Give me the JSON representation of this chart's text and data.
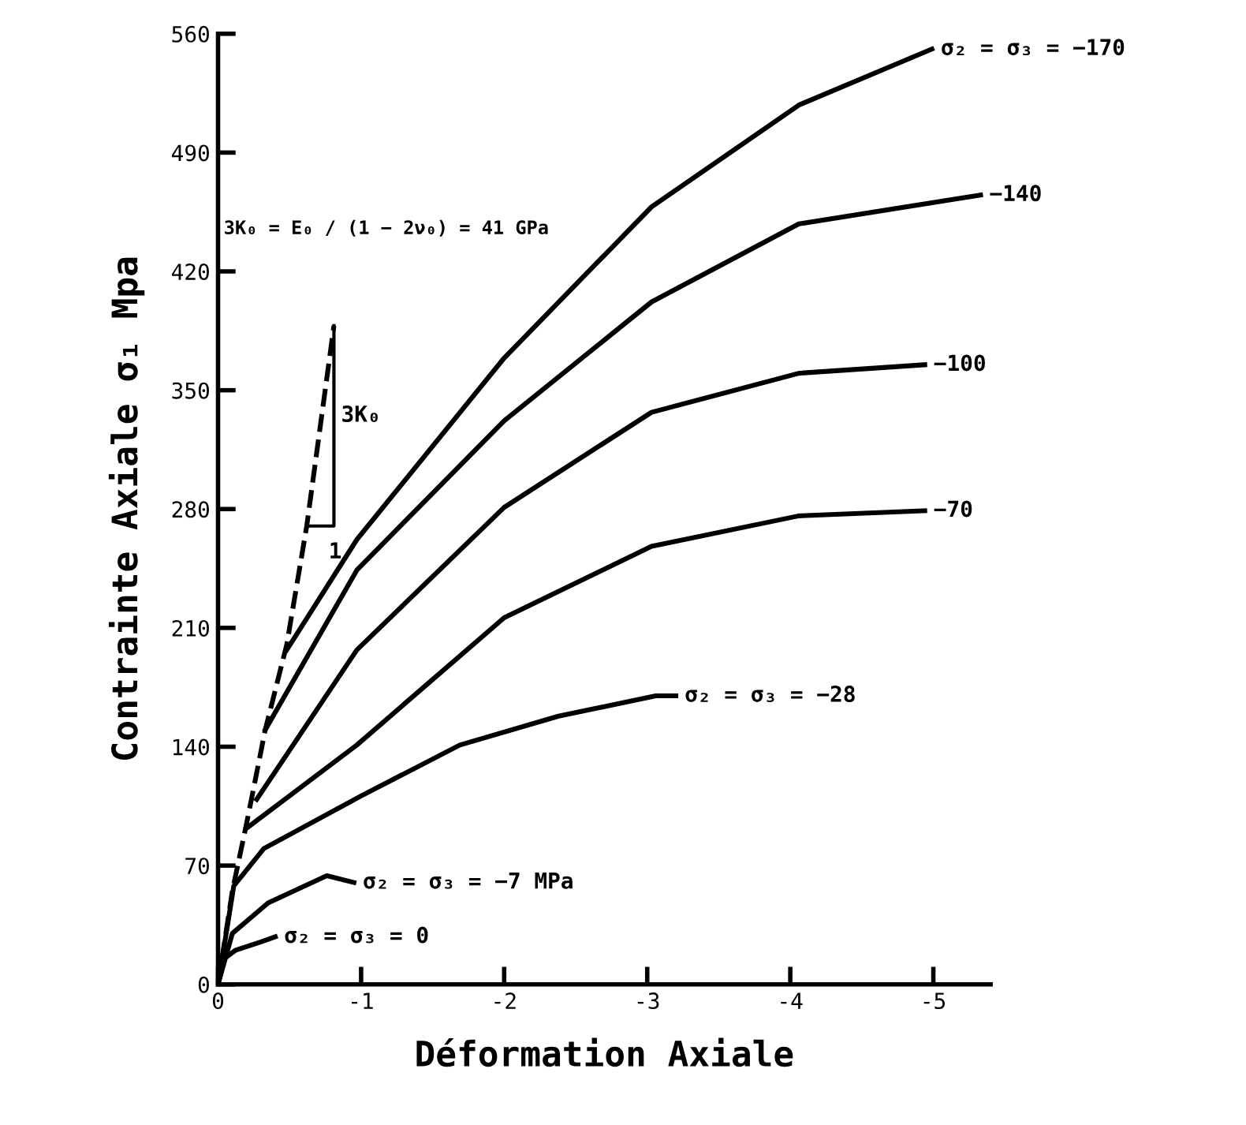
{
  "chart_data": {
    "type": "line",
    "xlabel": "Déformation Axiale",
    "ylabel": "Contrainte Axiale σ₁ Mpa",
    "xlim": [
      0,
      -5.4
    ],
    "xticks": [
      0,
      -1,
      -2,
      -3,
      -4,
      -5
    ],
    "ylim": [
      0,
      560
    ],
    "yticks": [
      0,
      70,
      140,
      210,
      280,
      350,
      420,
      490,
      560
    ],
    "grid": false,
    "legend": false,
    "marker": "none",
    "line_style": "solid",
    "series": [
      {
        "name": "σ₂ = σ₃ = 0",
        "color": "#000000",
        "x": [
          0,
          -0.04,
          -0.12,
          -0.3,
          -0.4
        ],
        "values": [
          0,
          15,
          20,
          25,
          28
        ]
      },
      {
        "name": "σ₂ = σ₃ = −7 MPa",
        "color": "#000000",
        "x": [
          0,
          -0.1,
          -0.35,
          -0.76,
          -0.95
        ],
        "values": [
          0,
          30,
          48,
          64,
          60
        ]
      },
      {
        "name": "σ₂ = σ₃ = −28",
        "color": "#000000",
        "x": [
          0,
          -0.11,
          -0.32,
          -1.0,
          -1.69,
          -2.38,
          -3.06,
          -3.2
        ],
        "values": [
          0,
          58,
          80,
          111,
          141,
          158,
          170,
          170
        ]
      },
      {
        "name": "−70",
        "color": "#000000",
        "x": [
          -0.2,
          -0.97,
          -2.0,
          -3.03,
          -4.06,
          -4.94
        ],
        "values": [
          92,
          141,
          216,
          258,
          276,
          279
        ]
      },
      {
        "name": "−100",
        "color": "#000000",
        "x": [
          -0.27,
          -0.97,
          -2.0,
          -3.03,
          -4.06,
          -4.94
        ],
        "values": [
          109,
          197,
          281,
          337,
          360,
          365
        ]
      },
      {
        "name": "−140",
        "color": "#000000",
        "x": [
          -0.33,
          -0.97,
          -2.0,
          -3.03,
          -4.06,
          -5.33
        ],
        "values": [
          150,
          244,
          332,
          402,
          448,
          465
        ]
      },
      {
        "name": "σ₂ = σ₃ = −170",
        "color": "#000000",
        "x": [
          -0.48,
          -0.97,
          -2.0,
          -3.03,
          -4.06,
          -4.99
        ],
        "values": [
          197,
          262,
          369,
          458,
          518,
          551
        ]
      },
      {
        "color": "#000000",
        "line_style": "dashed",
        "x": [
          0,
          -0.1,
          -0.2,
          -0.33,
          -0.48,
          -0.62,
          -0.81
        ],
        "values": [
          0,
          55,
          95,
          150,
          200,
          270,
          388
        ]
      }
    ],
    "annotations": [
      "3K₀ = E₀ / (1 − 2ν₀) = 41 GPa",
      "3K₀",
      {
        "text": "1",
        "x": -0.62,
        "y": 270
      }
    ]
  }
}
